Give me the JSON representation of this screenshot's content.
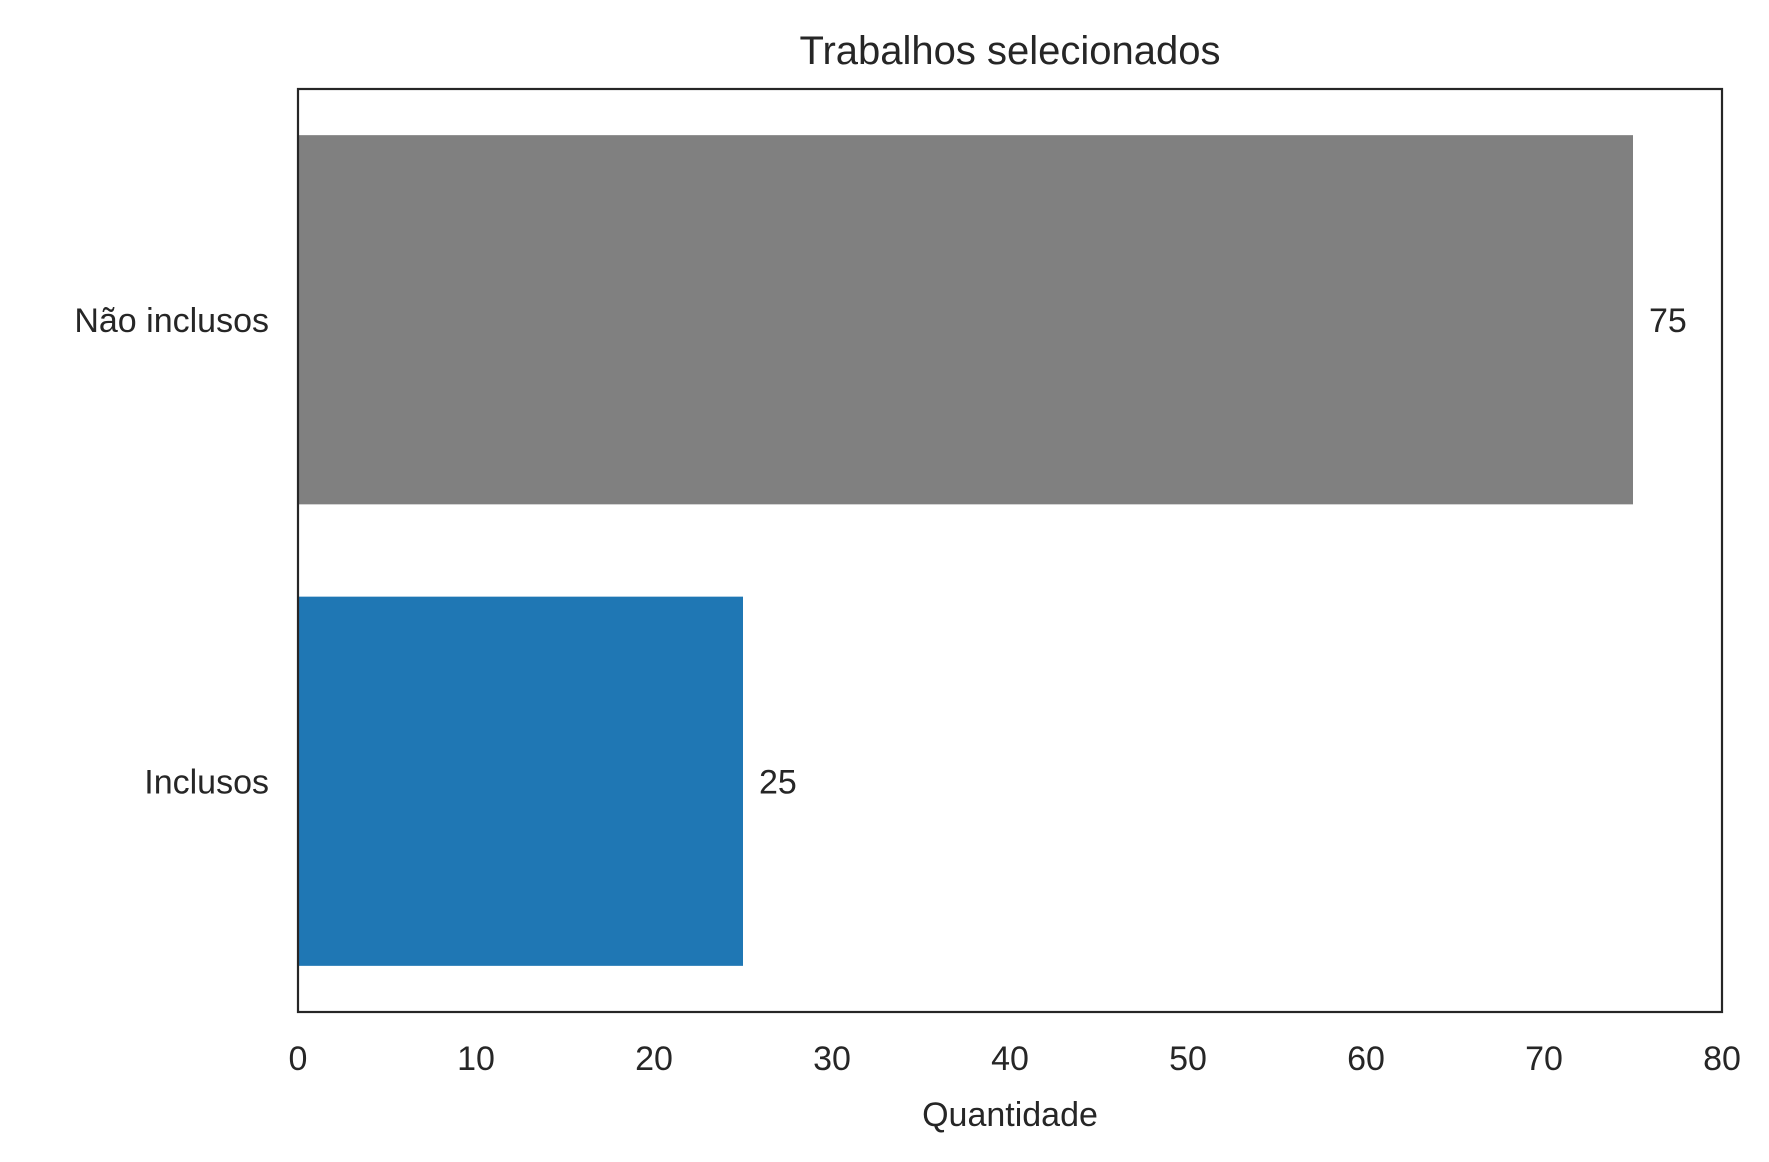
{
  "chart_data": {
    "type": "bar",
    "orientation": "horizontal",
    "title": "Trabalhos selecionados",
    "xlabel": "Quantidade",
    "ylabel": "",
    "xlim": [
      0,
      80
    ],
    "xticks": [
      0,
      10,
      20,
      30,
      40,
      50,
      60,
      70,
      80
    ],
    "grid": false,
    "categories": [
      "Não inclusos",
      "Inclusos"
    ],
    "values": [
      75,
      25
    ],
    "data_labels": [
      "75",
      "25"
    ],
    "colors": [
      "#808080",
      "#1f77b4"
    ]
  }
}
